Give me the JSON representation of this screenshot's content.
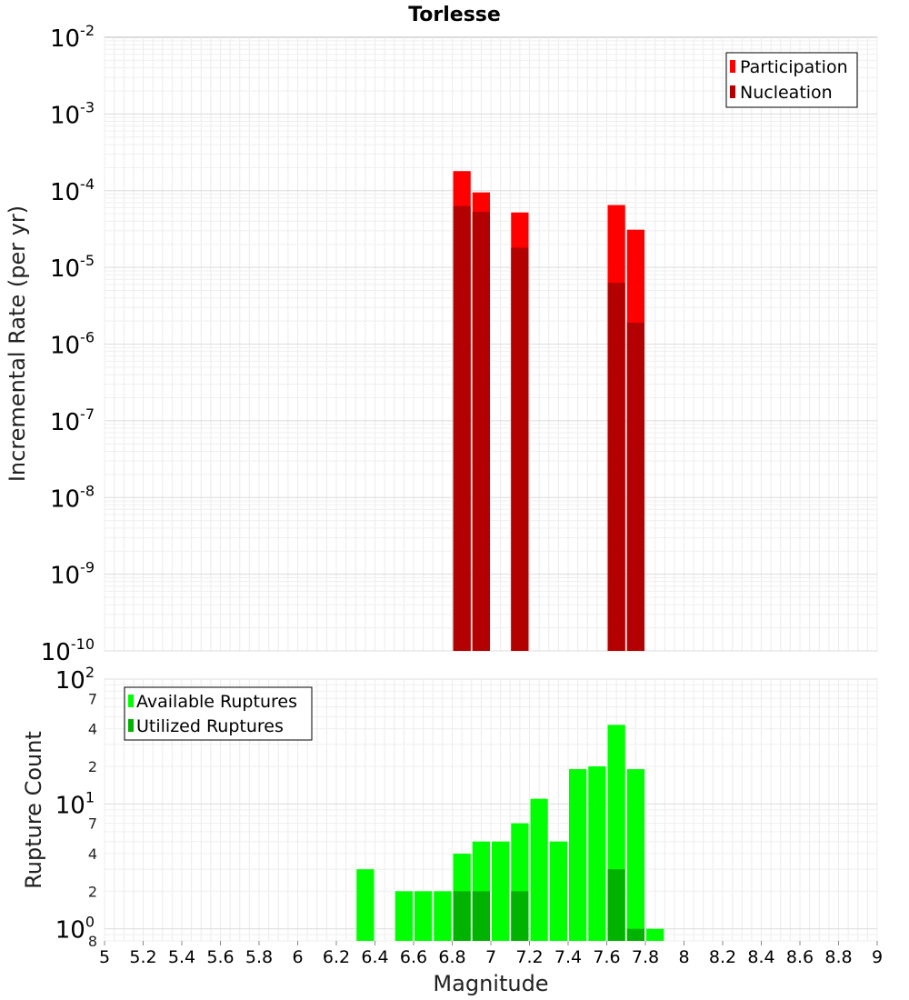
{
  "chart_data": [
    {
      "type": "bar",
      "title": "Torlesse",
      "xlabel": "",
      "ylabel": "Incremental Rate (per yr)",
      "xlim": [
        5,
        9
      ],
      "ylim": [
        1e-10,
        0.01
      ],
      "y_scale": "log",
      "grid": true,
      "bar_width": 0.1,
      "legend_position": "top-right",
      "y_ticks": [
        {
          "value": 1e-10,
          "base": "10",
          "exp": "-10"
        },
        {
          "value": 1e-09,
          "base": "10",
          "exp": "-9"
        },
        {
          "value": 1e-08,
          "base": "10",
          "exp": "-8"
        },
        {
          "value": 1e-07,
          "base": "10",
          "exp": "-7"
        },
        {
          "value": 1e-06,
          "base": "10",
          "exp": "-6"
        },
        {
          "value": 1e-05,
          "base": "10",
          "exp": "-5"
        },
        {
          "value": 0.0001,
          "base": "10",
          "exp": "-4"
        },
        {
          "value": 0.001,
          "base": "10",
          "exp": "-3"
        },
        {
          "value": 0.01,
          "base": "10",
          "exp": "-2"
        }
      ],
      "series": [
        {
          "name": "Participation",
          "color": "#ff0000",
          "x": [
            6.85,
            6.95,
            7.15,
            7.65,
            7.75
          ],
          "values": [
            0.00018,
            9.5e-05,
            5.2e-05,
            6.5e-05,
            3.1e-05
          ]
        },
        {
          "name": "Nucleation",
          "color": "#b30000",
          "x": [
            6.85,
            6.95,
            7.15,
            7.65,
            7.75
          ],
          "values": [
            6.3e-05,
            5.3e-05,
            1.8e-05,
            6.3e-06,
            1.9e-06
          ]
        }
      ]
    },
    {
      "type": "bar",
      "title": "",
      "xlabel": "Magnitude",
      "ylabel": "Rupture Count",
      "xlim": [
        5,
        9
      ],
      "ylim": [
        0.8,
        100
      ],
      "y_scale": "log",
      "grid": true,
      "bar_width": 0.1,
      "legend_position": "top-left",
      "x_ticks": [
        "5",
        "5.2",
        "5.4",
        "5.6",
        "5.8",
        "6",
        "6.2",
        "6.4",
        "6.6",
        "6.8",
        "7",
        "7.2",
        "7.4",
        "7.6",
        "7.8",
        "8",
        "8.2",
        "8.4",
        "8.6",
        "8.8",
        "9"
      ],
      "y_major_ticks": [
        {
          "value": 1,
          "base": "10",
          "exp": "0"
        },
        {
          "value": 10,
          "base": "10",
          "exp": "1"
        },
        {
          "value": 100,
          "base": "10",
          "exp": "2"
        }
      ],
      "y_minor_ticks": [
        {
          "value": 0.8,
          "label": "8"
        },
        {
          "value": 2,
          "label": "2"
        },
        {
          "value": 4,
          "label": "4"
        },
        {
          "value": 7,
          "label": "7"
        },
        {
          "value": 20,
          "label": "2"
        },
        {
          "value": 40,
          "label": "4"
        },
        {
          "value": 70,
          "label": "7"
        }
      ],
      "series": [
        {
          "name": "Available Ruptures",
          "color": "#00ff00",
          "x": [
            6.35,
            6.55,
            6.65,
            6.75,
            6.85,
            6.95,
            7.05,
            7.15,
            7.25,
            7.35,
            7.45,
            7.55,
            7.65,
            7.75,
            7.85
          ],
          "values": [
            3,
            2,
            2,
            2,
            4,
            5,
            5,
            7,
            11,
            5,
            19,
            20,
            43,
            19,
            1
          ]
        },
        {
          "name": "Utilized Ruptures",
          "color": "#00b300",
          "x": [
            6.85,
            6.95,
            7.15,
            7.65,
            7.75
          ],
          "values": [
            2,
            2,
            2,
            3,
            1
          ]
        }
      ]
    }
  ]
}
